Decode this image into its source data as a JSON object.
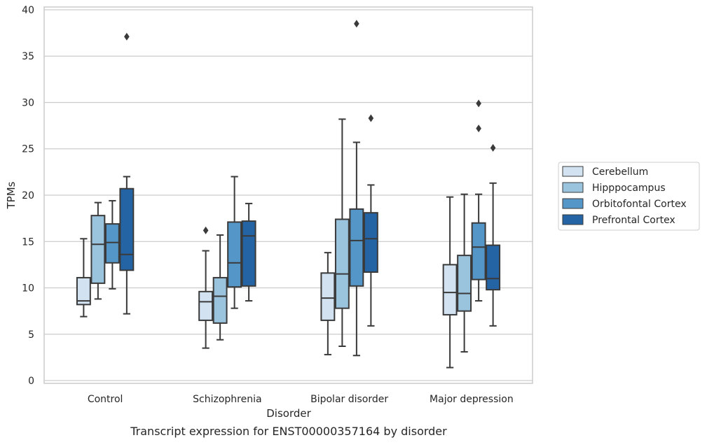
{
  "chart_data": {
    "type": "box",
    "title": "",
    "caption": "Transcript expression for ENST00000357164 by disorder",
    "xlabel": "Disorder",
    "ylabel": "TPMs",
    "ylim": [
      -0.3,
      40.3
    ],
    "yticks": [
      0,
      5,
      10,
      15,
      20,
      25,
      30,
      35,
      40
    ],
    "grid": "horizontal",
    "legend_position": "right",
    "categories": [
      "Control",
      "Schizophrenia",
      "Bipolar disorder",
      "Major depression"
    ],
    "series": [
      {
        "name": "Cerebellum",
        "color": "#d2e2f1",
        "boxes": [
          {
            "whislo": 6.9,
            "q1": 8.2,
            "med": 8.6,
            "q3": 11.1,
            "whishi": 15.3,
            "fliers": []
          },
          {
            "whislo": 3.5,
            "q1": 6.5,
            "med": 8.5,
            "q3": 9.6,
            "whishi": 14.0,
            "fliers": [
              16.2
            ]
          },
          {
            "whislo": 2.8,
            "q1": 6.5,
            "med": 8.9,
            "q3": 11.6,
            "whishi": 13.8,
            "fliers": []
          },
          {
            "whislo": 1.4,
            "q1": 7.1,
            "med": 9.5,
            "q3": 12.5,
            "whishi": 19.8,
            "fliers": []
          }
        ]
      },
      {
        "name": "Hipppocampus",
        "color": "#9ac3dd",
        "boxes": [
          {
            "whislo": 8.8,
            "q1": 10.5,
            "med": 14.7,
            "q3": 17.8,
            "whishi": 19.2,
            "fliers": []
          },
          {
            "whislo": 4.4,
            "q1": 6.2,
            "med": 9.1,
            "q3": 11.1,
            "whishi": 15.7,
            "fliers": []
          },
          {
            "whislo": 3.7,
            "q1": 7.8,
            "med": 11.5,
            "q3": 17.4,
            "whishi": 28.2,
            "fliers": []
          },
          {
            "whislo": 3.1,
            "q1": 7.5,
            "med": 9.4,
            "q3": 13.5,
            "whishi": 20.1,
            "fliers": []
          }
        ]
      },
      {
        "name": "Orbitofontal Cortex",
        "color": "#5496c7",
        "boxes": [
          {
            "whislo": 9.9,
            "q1": 12.7,
            "med": 14.9,
            "q3": 16.9,
            "whishi": 19.4,
            "fliers": []
          },
          {
            "whislo": 7.8,
            "q1": 10.1,
            "med": 12.7,
            "q3": 17.1,
            "whishi": 22.0,
            "fliers": []
          },
          {
            "whislo": 2.7,
            "q1": 10.2,
            "med": 15.1,
            "q3": 18.5,
            "whishi": 25.7,
            "fliers": [
              38.5
            ]
          },
          {
            "whislo": 8.6,
            "q1": 10.9,
            "med": 14.4,
            "q3": 17.0,
            "whishi": 20.1,
            "fliers": [
              29.9,
              27.2
            ]
          }
        ]
      },
      {
        "name": "Prefrontal Cortex",
        "color": "#2464a4",
        "boxes": [
          {
            "whislo": 7.2,
            "q1": 11.9,
            "med": 13.6,
            "q3": 20.7,
            "whishi": 22.0,
            "fliers": [
              37.1
            ]
          },
          {
            "whislo": 8.6,
            "q1": 10.2,
            "med": 15.6,
            "q3": 17.2,
            "whishi": 19.1,
            "fliers": []
          },
          {
            "whislo": 5.9,
            "q1": 11.7,
            "med": 15.3,
            "q3": 18.1,
            "whishi": 21.1,
            "fliers": [
              28.3
            ]
          },
          {
            "whislo": 5.9,
            "q1": 9.8,
            "med": 11.0,
            "q3": 14.6,
            "whishi": 21.3,
            "fliers": [
              25.1
            ]
          }
        ]
      }
    ]
  }
}
